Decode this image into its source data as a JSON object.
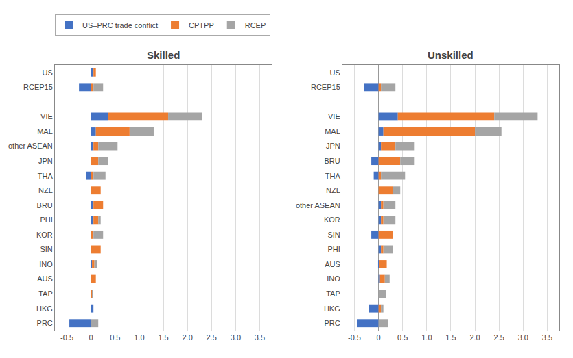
{
  "chart_data": [
    {
      "type": "bar",
      "title": "Skilled",
      "orientation": "horizontal",
      "stacked": true,
      "grid": true,
      "legend": "upper left",
      "categories": [
        "US",
        "RCEP15",
        null,
        "VIE",
        "MAL",
        "other ASEAN",
        "JPN",
        "THA",
        "NZL",
        "BRU",
        "PHI",
        "KOR",
        "SIN",
        "INO",
        "AUS",
        "TAP",
        "HKG",
        "PRC"
      ],
      "series": [
        {
          "name": "US–PRC trade conflict",
          "color": "#4472c4",
          "values": [
            0.05,
            -0.25,
            0.0,
            0.35,
            0.1,
            0.05,
            0.0,
            -0.1,
            0.0,
            0.05,
            0.05,
            0.0,
            0.0,
            0.02,
            0.0,
            0.0,
            0.05,
            -0.45
          ]
        },
        {
          "name": "CPTPP",
          "color": "#ed7d31",
          "values": [
            0.05,
            0.05,
            0.0,
            1.25,
            0.7,
            0.1,
            0.15,
            0.05,
            0.2,
            0.2,
            0.1,
            0.05,
            0.2,
            0.05,
            0.1,
            0.02,
            0.0,
            0.0
          ]
        },
        {
          "name": "RCEP",
          "color": "#a5a5a5",
          "values": [
            0.0,
            0.2,
            0.0,
            0.7,
            0.5,
            0.4,
            0.2,
            0.25,
            0.0,
            0.0,
            0.05,
            0.2,
            0.0,
            0.05,
            0.0,
            0.02,
            0.0,
            0.15
          ]
        }
      ],
      "xlim": [
        -0.75,
        3.75
      ],
      "xticks": [
        -0.5,
        0,
        0.5,
        {
          "value": 1,
          "label": "1.0"
        },
        1.5,
        {
          "value": 2,
          "label": "2.0"
        },
        2.5,
        {
          "value": 3,
          "label": "3.0"
        },
        3.5
      ]
    },
    {
      "type": "bar",
      "title": "Unskilled",
      "orientation": "horizontal",
      "stacked": true,
      "grid": true,
      "legend": "upper left",
      "categories": [
        "US",
        "RCEP15",
        null,
        "VIE",
        "MAL",
        "JPN",
        "BRU",
        "THA",
        "NZL",
        "other ASEAN",
        "KOR",
        "SIN",
        "PHI",
        "AUS",
        "INO",
        "TAP",
        "HKG",
        "PRC"
      ],
      "series": [
        {
          "name": "US–PRC trade conflict",
          "color": "#4472c4",
          "values": [
            0.0,
            -0.3,
            0.0,
            0.4,
            0.1,
            0.05,
            -0.15,
            -0.1,
            0.0,
            0.05,
            0.05,
            -0.15,
            0.05,
            0.02,
            0.03,
            0.0,
            -0.2,
            -0.45
          ]
        },
        {
          "name": "CPTPP",
          "color": "#ed7d31",
          "values": [
            0.0,
            0.05,
            0.0,
            2.0,
            1.9,
            0.3,
            0.45,
            0.05,
            0.3,
            0.05,
            0.05,
            0.3,
            0.05,
            0.15,
            0.1,
            0.0,
            0.05,
            0.0
          ]
        },
        {
          "name": "RCEP",
          "color": "#a5a5a5",
          "values": [
            0.0,
            0.3,
            0.0,
            0.9,
            0.55,
            0.4,
            0.3,
            0.5,
            0.15,
            0.25,
            0.25,
            0.0,
            0.2,
            0.0,
            0.1,
            0.15,
            0.05,
            0.2
          ]
        }
      ],
      "xlim": [
        -0.75,
        3.75
      ],
      "xticks": [
        -0.5,
        0,
        0.5,
        {
          "value": 1,
          "label": "1.0"
        },
        1.5,
        {
          "value": 2,
          "label": "2.0"
        },
        2.5,
        {
          "value": 3,
          "label": "3.0"
        },
        3.5
      ]
    }
  ]
}
